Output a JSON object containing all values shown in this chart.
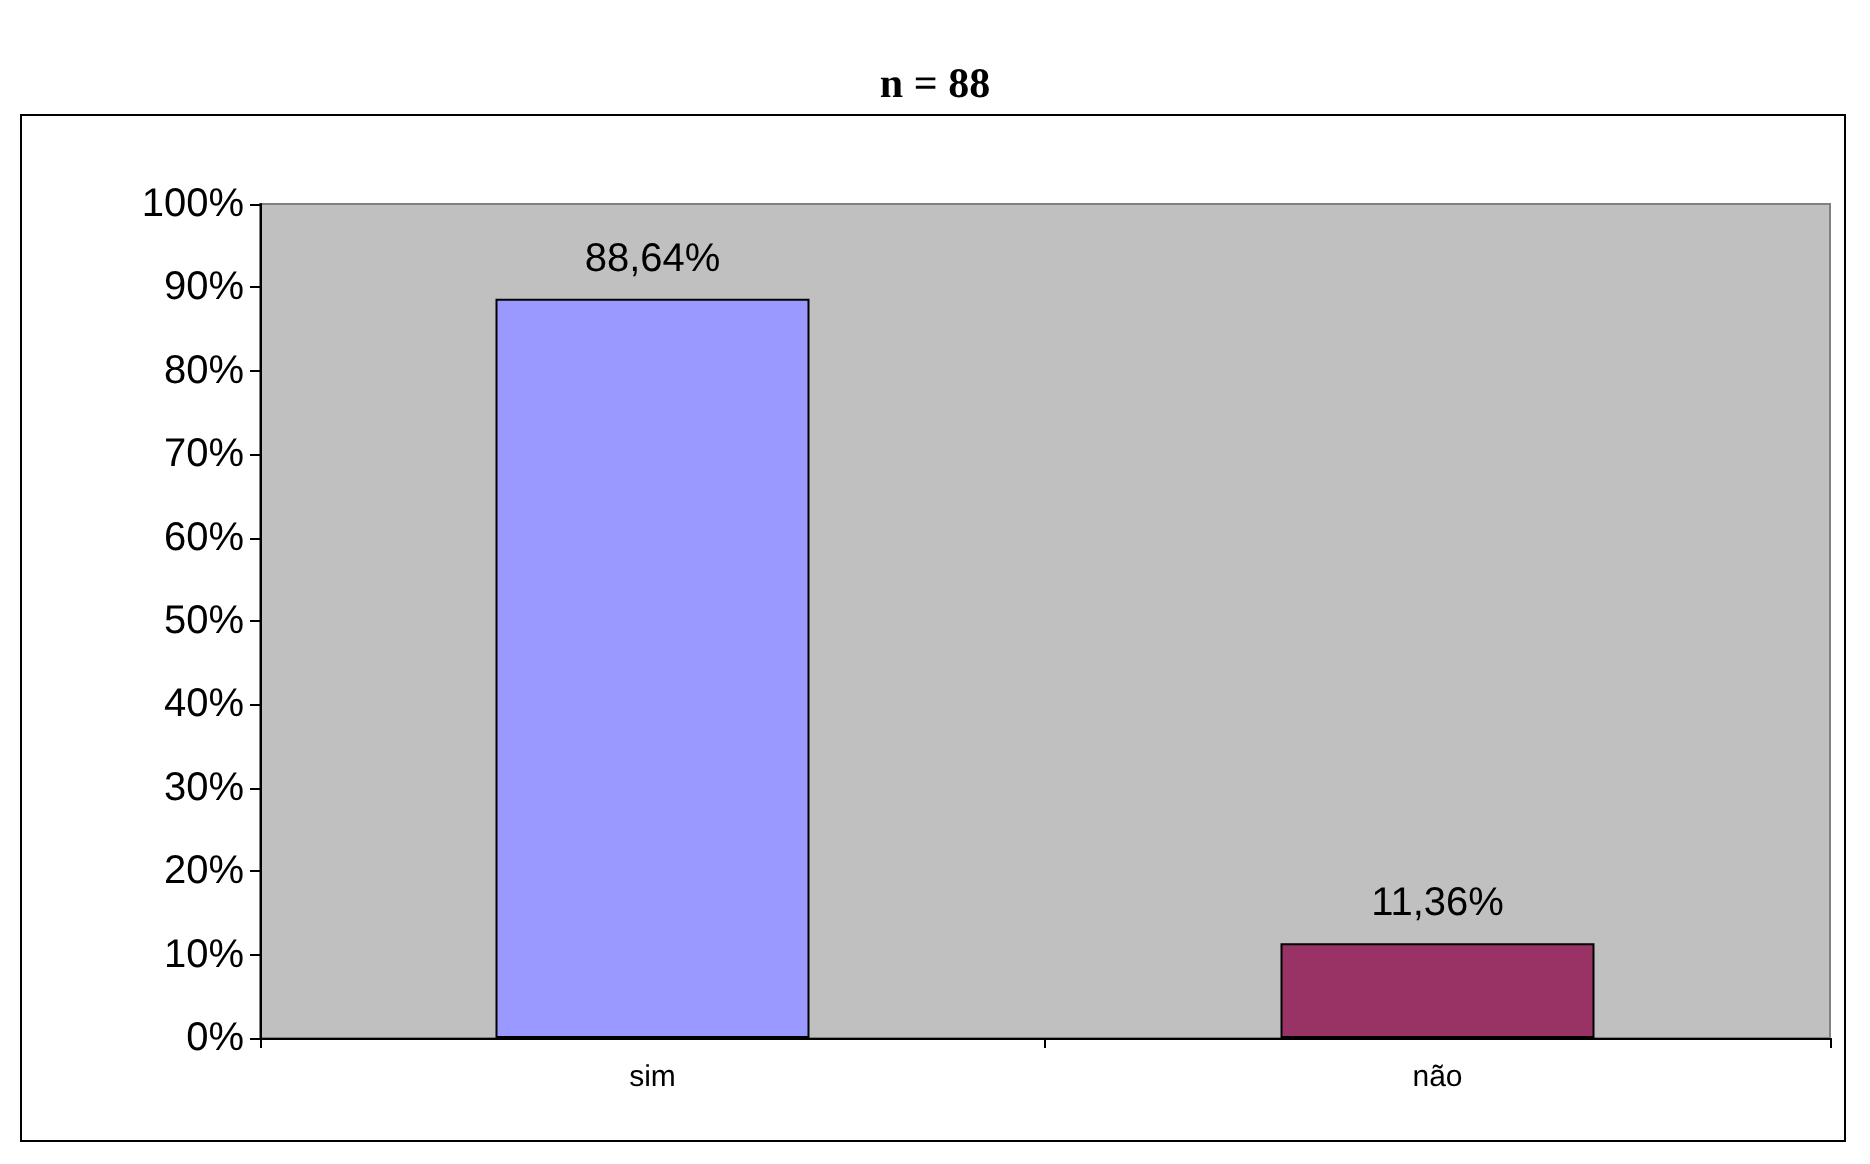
{
  "chart_data": {
    "type": "bar",
    "title": "n = 88",
    "categories": [
      "sim",
      "não"
    ],
    "values": [
      88.64,
      11.36
    ],
    "colors": [
      "#9999ff",
      "#993366"
    ],
    "value_labels": [
      "88,64%",
      "11,36%"
    ],
    "ylim": [
      0,
      100
    ],
    "yticks": [
      {
        "value": 0,
        "label": "0%"
      },
      {
        "value": 10,
        "label": "10%"
      },
      {
        "value": 20,
        "label": "20%"
      },
      {
        "value": 30,
        "label": "30%"
      },
      {
        "value": 40,
        "label": "40%"
      },
      {
        "value": 50,
        "label": "50%"
      },
      {
        "value": 60,
        "label": "60%"
      },
      {
        "value": 70,
        "label": "70%"
      },
      {
        "value": 80,
        "label": "80%"
      },
      {
        "value": 90,
        "label": "90%"
      },
      {
        "value": 100,
        "label": "100%"
      }
    ],
    "grid": false
  }
}
